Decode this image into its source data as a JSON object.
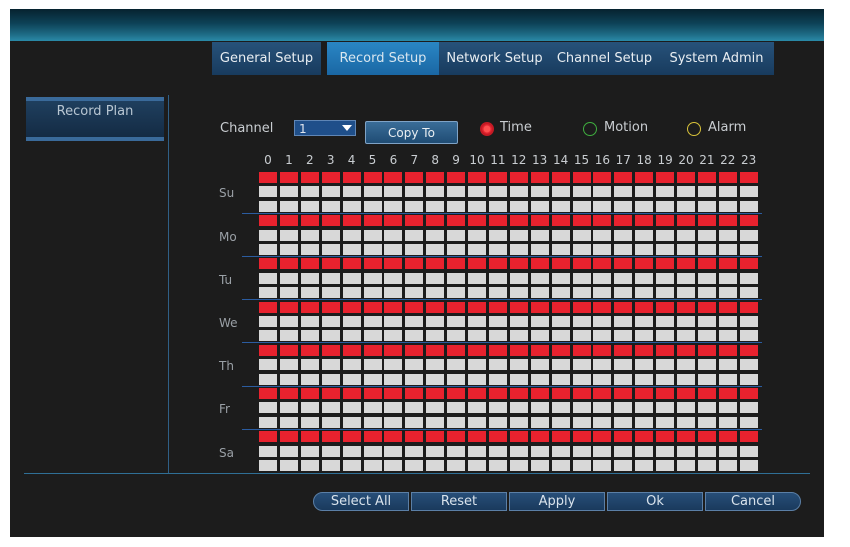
{
  "tabs": [
    {
      "label": "General Setup",
      "active": false
    },
    {
      "label": "Record Setup",
      "active": true
    },
    {
      "label": "Network Setup",
      "active": false
    },
    {
      "label": "Channel Setup",
      "active": false
    },
    {
      "label": "System Admin",
      "active": false
    }
  ],
  "sidebar": {
    "items": [
      {
        "label": "Record Plan",
        "selected": true
      }
    ]
  },
  "controls": {
    "channel_label": "Channel",
    "channel_value": "1",
    "copy_to_label": "Copy To",
    "record_modes": [
      {
        "label": "Time",
        "selected": true,
        "color": "#e8222e"
      },
      {
        "label": "Motion",
        "selected": false,
        "color": "#3fae3f"
      },
      {
        "label": "Alarm",
        "selected": false,
        "color": "#d8c23a"
      }
    ]
  },
  "schedule": {
    "hours": [
      "0",
      "1",
      "2",
      "3",
      "4",
      "5",
      "6",
      "7",
      "8",
      "9",
      "10",
      "11",
      "12",
      "13",
      "14",
      "15",
      "16",
      "17",
      "18",
      "19",
      "20",
      "21",
      "22",
      "23"
    ],
    "days": [
      "Su",
      "Mo",
      "Tu",
      "We",
      "Th",
      "Fr",
      "Sa"
    ],
    "row_pattern": [
      "Time",
      "none",
      "none"
    ],
    "colors": {
      "time": "#e8222e",
      "none": "#d8d8d8"
    }
  },
  "buttons": {
    "select_all": "Select All",
    "reset": "Reset",
    "apply": "Apply",
    "ok": "Ok",
    "cancel": "Cancel"
  }
}
